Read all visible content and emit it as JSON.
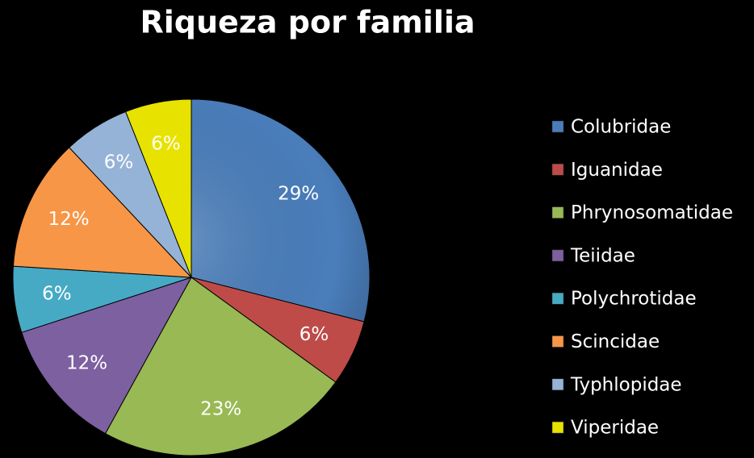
{
  "chart_data": {
    "type": "pie",
    "title": "Riqueza por familia",
    "categories": [
      "Colubridae",
      "Iguanidae",
      "Phrynosomatidae",
      "Teiidae",
      "Polychrotidae",
      "Scincidae",
      "Typhlopidae",
      "Viperidae"
    ],
    "values": [
      29,
      6,
      23,
      12,
      6,
      12,
      6,
      6
    ],
    "value_labels": [
      "29%",
      "6%",
      "23%",
      "12%",
      "6%",
      "12%",
      "6%",
      "6%"
    ],
    "colors": [
      "#4a7ebb",
      "#be4b48",
      "#98b954",
      "#7d60a0",
      "#46aac5",
      "#f79646",
      "#95b3d7",
      "#e8e200"
    ],
    "legend": "right"
  }
}
